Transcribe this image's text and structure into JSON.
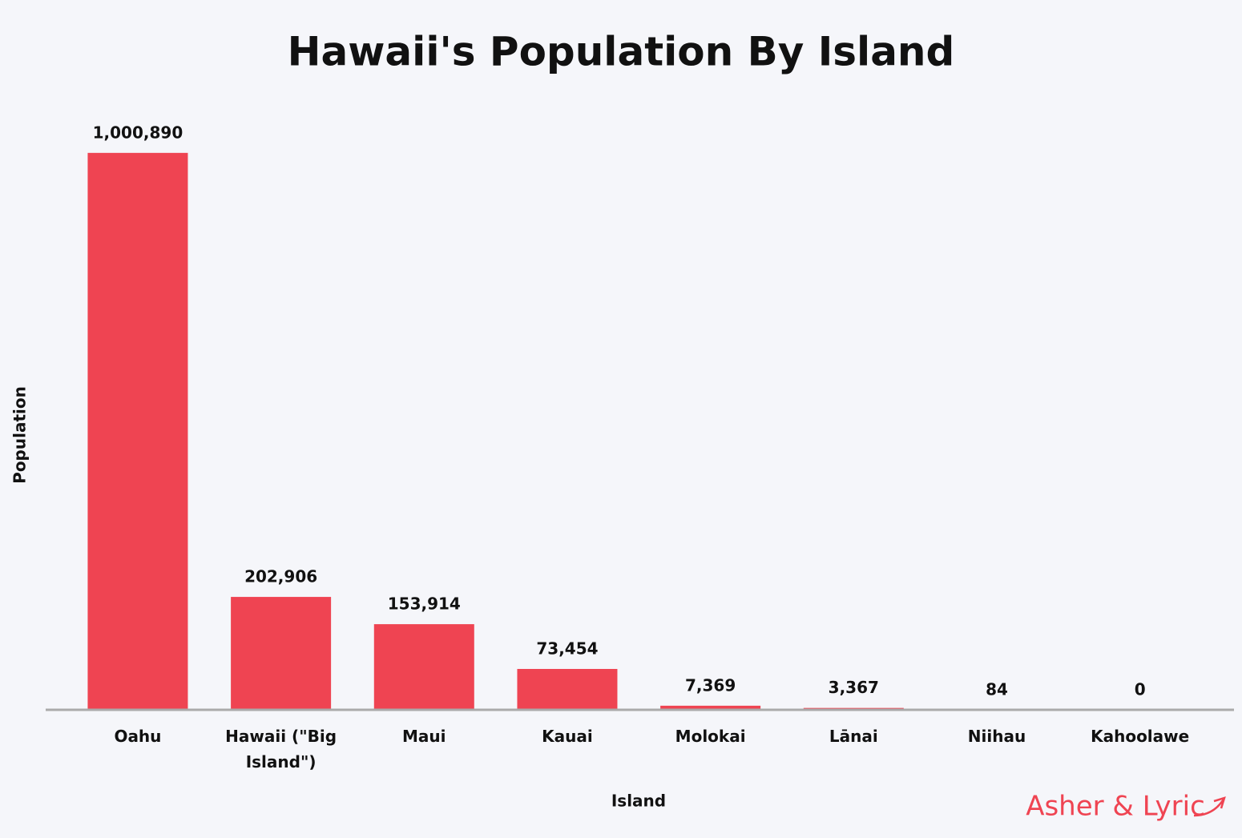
{
  "chart_data": {
    "type": "bar",
    "title": "Hawaii's Population By Island",
    "x_label": "Island",
    "y_label": "Population",
    "categories": [
      "Oahu",
      "Hawaii (\"Big Island\")",
      "Maui",
      "Kauai",
      "Molokai",
      "Lānai",
      "Niihau",
      "Kahoolawe"
    ],
    "values": [
      1000890,
      202906,
      153914,
      73454,
      7369,
      3367,
      84,
      0
    ],
    "value_labels": [
      "1,000,890",
      "202,906",
      "153,914",
      "73,454",
      "7,369",
      "3,367",
      "84",
      "0"
    ],
    "color": "#ef4452",
    "ylim": [
      0,
      1100000
    ],
    "grid": false
  },
  "logo": "Asher & Lyric"
}
